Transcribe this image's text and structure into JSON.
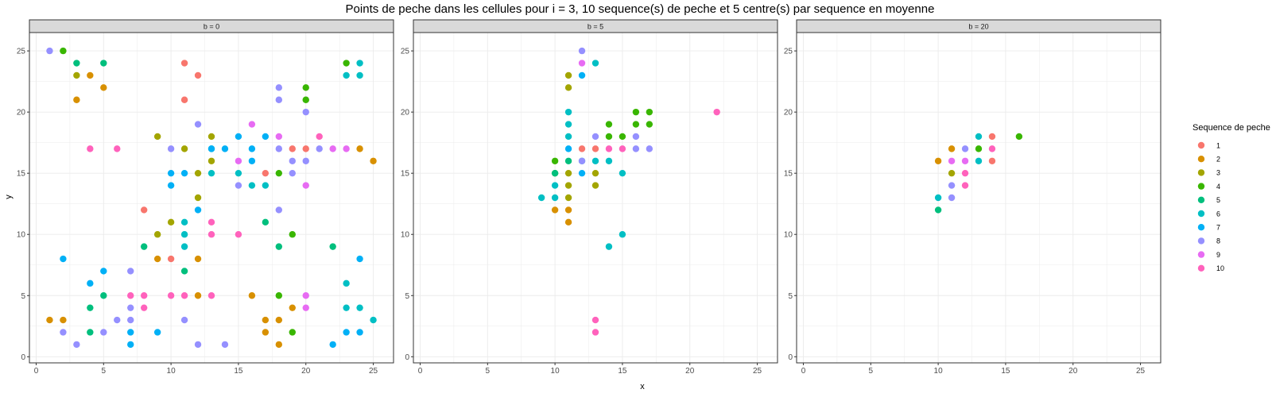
{
  "chart_data": {
    "type": "scatter",
    "title": "Points de peche dans les cellules pour i = 3, 10 sequence(s) de peche et 5 centre(s) par sequence en moyenne",
    "xlabel": "x",
    "ylabel": "y",
    "xlim": [
      -0.5,
      26.5
    ],
    "ylim": [
      -0.5,
      26.5
    ],
    "xticks": [
      0,
      5,
      10,
      15,
      20,
      25
    ],
    "yticks": [
      0,
      5,
      10,
      15,
      20,
      25
    ],
    "grid": true,
    "legend": {
      "title": "Sequence de peche",
      "placement": "right",
      "entries": [
        "1",
        "2",
        "3",
        "4",
        "5",
        "6",
        "7",
        "8",
        "9",
        "10"
      ],
      "colors": [
        "#F8766D",
        "#D89000",
        "#A3A500",
        "#39B600",
        "#00BF7D",
        "#00BFC4",
        "#00B0F6",
        "#9590FF",
        "#E76BF3",
        "#FF62BC"
      ]
    },
    "panels": [
      {
        "label": "b = 0",
        "series": [
          {
            "name": "1",
            "points": [
              [
                11,
                24
              ],
              [
                12,
                23
              ],
              [
                11,
                21
              ],
              [
                19,
                17
              ],
              [
                20,
                17
              ],
              [
                17,
                15
              ],
              [
                8,
                12
              ],
              [
                10,
                8
              ]
            ]
          },
          {
            "name": "2",
            "points": [
              [
                4,
                23
              ],
              [
                5,
                22
              ],
              [
                3,
                21
              ],
              [
                24,
                17
              ],
              [
                25,
                16
              ],
              [
                12,
                8
              ],
              [
                9,
                8
              ],
              [
                1,
                3
              ],
              [
                2,
                3
              ],
              [
                17,
                3
              ],
              [
                18,
                3
              ],
              [
                12,
                5
              ],
              [
                16,
                5
              ],
              [
                17,
                2
              ],
              [
                18,
                1
              ],
              [
                19,
                4
              ]
            ]
          },
          {
            "name": "3",
            "points": [
              [
                3,
                23
              ],
              [
                9,
                18
              ],
              [
                11,
                17
              ],
              [
                13,
                18
              ],
              [
                12,
                15
              ],
              [
                13,
                16
              ],
              [
                12,
                13
              ],
              [
                10,
                11
              ],
              [
                9,
                10
              ]
            ]
          },
          {
            "name": "4",
            "points": [
              [
                2,
                25
              ],
              [
                20,
                22
              ],
              [
                20,
                21
              ],
              [
                23,
                24
              ],
              [
                18,
                15
              ],
              [
                19,
                10
              ],
              [
                18,
                5
              ],
              [
                19,
                2
              ]
            ]
          },
          {
            "name": "5",
            "points": [
              [
                3,
                24
              ],
              [
                5,
                24
              ],
              [
                8,
                9
              ],
              [
                11,
                7
              ],
              [
                17,
                11
              ],
              [
                18,
                9
              ],
              [
                22,
                9
              ],
              [
                4,
                4
              ],
              [
                4,
                2
              ],
              [
                5,
                5
              ]
            ]
          },
          {
            "name": "6",
            "points": [
              [
                24,
                24
              ],
              [
                23,
                23
              ],
              [
                24,
                23
              ],
              [
                13,
                17
              ],
              [
                13,
                15
              ],
              [
                15,
                15
              ],
              [
                16,
                14
              ],
              [
                17,
                14
              ],
              [
                11,
                11
              ],
              [
                11,
                9
              ],
              [
                11,
                10
              ],
              [
                23,
                6
              ],
              [
                23,
                4
              ],
              [
                24,
                4
              ],
              [
                25,
                3
              ]
            ]
          },
          {
            "name": "7",
            "points": [
              [
                13,
                17
              ],
              [
                14,
                17
              ],
              [
                15,
                18
              ],
              [
                16,
                17
              ],
              [
                17,
                18
              ],
              [
                11,
                15
              ],
              [
                10,
                15
              ],
              [
                10,
                14
              ],
              [
                12,
                12
              ],
              [
                2,
                8
              ],
              [
                5,
                7
              ],
              [
                4,
                6
              ],
              [
                7,
                2
              ],
              [
                7,
                1
              ],
              [
                9,
                2
              ],
              [
                22,
                1
              ],
              [
                23,
                2
              ],
              [
                24,
                2
              ],
              [
                24,
                8
              ],
              [
                16,
                16
              ]
            ]
          },
          {
            "name": "8",
            "points": [
              [
                1,
                25
              ],
              [
                12,
                19
              ],
              [
                10,
                17
              ],
              [
                18,
                22
              ],
              [
                18,
                21
              ],
              [
                20,
                20
              ],
              [
                18,
                17
              ],
              [
                19,
                16
              ],
              [
                20,
                16
              ],
              [
                19,
                15
              ],
              [
                21,
                17
              ],
              [
                15,
                14
              ],
              [
                18,
                12
              ],
              [
                7,
                7
              ],
              [
                7,
                4
              ],
              [
                7,
                3
              ],
              [
                6,
                3
              ],
              [
                5,
                2
              ],
              [
                2,
                2
              ],
              [
                3,
                1
              ],
              [
                11,
                3
              ],
              [
                12,
                1
              ],
              [
                14,
                1
              ]
            ]
          },
          {
            "name": "9",
            "points": [
              [
                16,
                19
              ],
              [
                18,
                18
              ],
              [
                22,
                17
              ],
              [
                23,
                17
              ],
              [
                15,
                16
              ],
              [
                20,
                14
              ],
              [
                20,
                5
              ],
              [
                20,
                4
              ]
            ]
          },
          {
            "name": "10",
            "points": [
              [
                4,
                17
              ],
              [
                6,
                17
              ],
              [
                13,
                11
              ],
              [
                13,
                10
              ],
              [
                15,
                10
              ],
              [
                7,
                5
              ],
              [
                8,
                5
              ],
              [
                8,
                4
              ],
              [
                10,
                5
              ],
              [
                11,
                5
              ],
              [
                13,
                5
              ],
              [
                21,
                18
              ]
            ]
          }
        ]
      },
      {
        "label": "b = 5",
        "series": [
          {
            "name": "1",
            "points": [
              [
                12,
                17
              ],
              [
                13,
                17
              ]
            ]
          },
          {
            "name": "2",
            "points": [
              [
                10,
                12
              ],
              [
                11,
                12
              ],
              [
                11,
                11
              ]
            ]
          },
          {
            "name": "3",
            "points": [
              [
                11,
                23
              ],
              [
                11,
                22
              ],
              [
                11,
                15
              ],
              [
                11,
                14
              ],
              [
                11,
                13
              ],
              [
                13,
                15
              ],
              [
                13,
                14
              ]
            ]
          },
          {
            "name": "4",
            "points": [
              [
                16,
                20
              ],
              [
                17,
                20
              ],
              [
                16,
                19
              ],
              [
                17,
                19
              ],
              [
                14,
                19
              ],
              [
                14,
                18
              ],
              [
                15,
                18
              ],
              [
                10,
                16
              ],
              [
                10,
                15
              ]
            ]
          },
          {
            "name": "5",
            "points": [
              [
                11,
                16
              ],
              [
                10,
                15
              ]
            ]
          },
          {
            "name": "6",
            "points": [
              [
                13,
                24
              ],
              [
                11,
                20
              ],
              [
                11,
                19
              ],
              [
                11,
                18
              ],
              [
                12,
                16
              ],
              [
                13,
                16
              ],
              [
                14,
                16
              ],
              [
                15,
                15
              ],
              [
                10,
                14
              ],
              [
                10,
                13
              ],
              [
                9,
                13
              ],
              [
                15,
                10
              ],
              [
                14,
                9
              ]
            ]
          },
          {
            "name": "7",
            "points": [
              [
                12,
                23
              ],
              [
                11,
                17
              ],
              [
                12,
                15
              ]
            ]
          },
          {
            "name": "8",
            "points": [
              [
                12,
                25
              ],
              [
                13,
                18
              ],
              [
                16,
                18
              ],
              [
                16,
                17
              ],
              [
                17,
                17
              ],
              [
                12,
                16
              ]
            ]
          },
          {
            "name": "9",
            "points": [
              [
                12,
                24
              ]
            ]
          },
          {
            "name": "10",
            "points": [
              [
                22,
                20
              ],
              [
                14,
                17
              ],
              [
                15,
                17
              ],
              [
                13,
                3
              ],
              [
                13,
                2
              ]
            ]
          }
        ]
      },
      {
        "label": "b = 20",
        "series": [
          {
            "name": "1",
            "points": [
              [
                14,
                18
              ],
              [
                14,
                16
              ]
            ]
          },
          {
            "name": "2",
            "points": [
              [
                10,
                16
              ],
              [
                11,
                17
              ]
            ]
          },
          {
            "name": "3",
            "points": [
              [
                11,
                15
              ]
            ]
          },
          {
            "name": "4",
            "points": [
              [
                16,
                18
              ],
              [
                13,
                17
              ]
            ]
          },
          {
            "name": "5",
            "points": [
              [
                10,
                12
              ]
            ]
          },
          {
            "name": "6",
            "points": [
              [
                13,
                18
              ],
              [
                13,
                16
              ],
              [
                10,
                13
              ]
            ]
          },
          {
            "name": "7",
            "points": []
          },
          {
            "name": "8",
            "points": [
              [
                12,
                17
              ],
              [
                11,
                14
              ],
              [
                11,
                13
              ]
            ]
          },
          {
            "name": "9",
            "points": [
              [
                11,
                16
              ],
              [
                12,
                16
              ]
            ]
          },
          {
            "name": "10",
            "points": [
              [
                12,
                15
              ],
              [
                12,
                14
              ],
              [
                14,
                17
              ]
            ]
          }
        ]
      }
    ]
  }
}
